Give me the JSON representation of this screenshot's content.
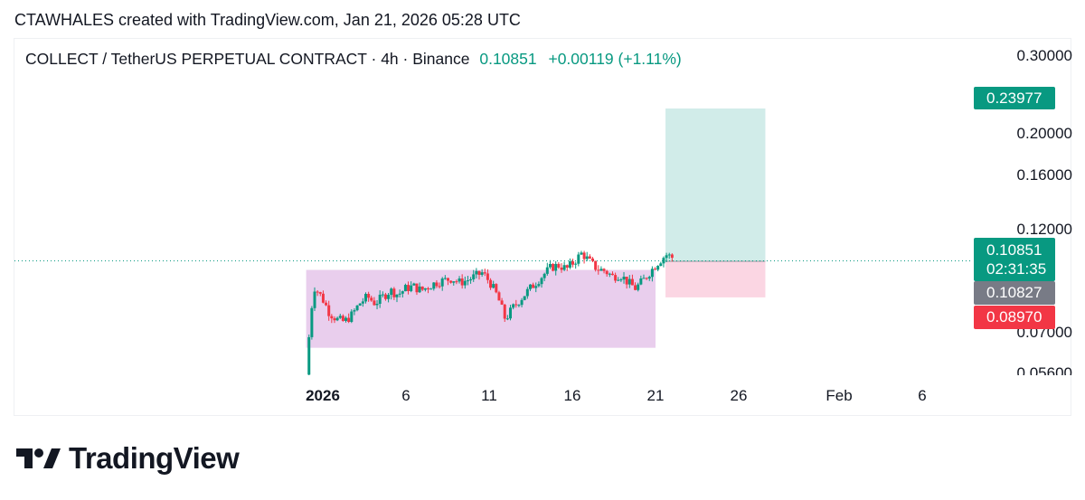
{
  "caption": "CTAWHALES created with TradingView.com, Jan 21, 2026 05:28 UTC",
  "header": {
    "symbol": "COLLECT / TetherUS PERPETUAL CONTRACT · 4h · Binance",
    "last_price": "0.10851",
    "change": "+0.00119 (+1.11%)"
  },
  "price_axis": {
    "ticks": [
      "0.30000",
      "0.20000",
      "0.16000",
      "0.12000",
      "0.07000",
      "0.05600"
    ],
    "target_tag": "0.23977",
    "last_tag": "0.10851",
    "countdown": "02:31:35",
    "entry_tag": "0.10827",
    "stop_tag": "0.08970"
  },
  "time_axis": {
    "labels": [
      "2026",
      "6",
      "11",
      "16",
      "21",
      "26",
      "Feb",
      "6"
    ]
  },
  "brand": {
    "name": "TradingView"
  },
  "colors": {
    "up": "#089981",
    "down": "#f23645",
    "range_box": "#e1bee7",
    "profit_zone": "#b2dfdb",
    "loss_zone": "#f8bbd0",
    "entry_tag": "#787b86"
  },
  "chart_data": {
    "type": "candlestick",
    "timeframe": "4h",
    "x_range": [
      "2025-12-31",
      "2026-02-07"
    ],
    "y_scale": "log",
    "last_price": 0.10851,
    "position": {
      "type": "long",
      "entry": 0.10827,
      "target": 0.23977,
      "stop": 0.0897
    },
    "range_box": {
      "low": 0.069,
      "high": 0.1035,
      "from": "2025-12-31",
      "to": "2026-01-21"
    },
    "price_path": [
      [
        0,
        0.06
      ],
      [
        1,
        0.095
      ],
      [
        2,
        0.09
      ],
      [
        3,
        0.083
      ],
      [
        4,
        0.08
      ],
      [
        5,
        0.079
      ],
      [
        6,
        0.082
      ],
      [
        7,
        0.087
      ],
      [
        8,
        0.09
      ],
      [
        9,
        0.087
      ],
      [
        10,
        0.09
      ],
      [
        11,
        0.093
      ],
      [
        12,
        0.091
      ],
      [
        13,
        0.094
      ],
      [
        14,
        0.095
      ],
      [
        15,
        0.093
      ],
      [
        16,
        0.095
      ],
      [
        17,
        0.097
      ],
      [
        18,
        0.098
      ],
      [
        19,
        0.099
      ],
      [
        20,
        0.097
      ],
      [
        21,
        0.098
      ],
      [
        22,
        0.1
      ],
      [
        23,
        0.102
      ],
      [
        24,
        0.097
      ],
      [
        25,
        0.09
      ],
      [
        26,
        0.08
      ],
      [
        27,
        0.085
      ],
      [
        28,
        0.089
      ],
      [
        29,
        0.093
      ],
      [
        30,
        0.097
      ],
      [
        31,
        0.101
      ],
      [
        32,
        0.105
      ],
      [
        33,
        0.106
      ],
      [
        34,
        0.104
      ],
      [
        35,
        0.108
      ],
      [
        36,
        0.113
      ],
      [
        37,
        0.108
      ],
      [
        38,
        0.104
      ],
      [
        39,
        0.103
      ],
      [
        40,
        0.1
      ],
      [
        41,
        0.101
      ],
      [
        42,
        0.097
      ],
      [
        43,
        0.094
      ],
      [
        44,
        0.098
      ],
      [
        45,
        0.103
      ],
      [
        46,
        0.108
      ],
      [
        47,
        0.112
      ],
      [
        48,
        0.11
      ]
    ]
  }
}
